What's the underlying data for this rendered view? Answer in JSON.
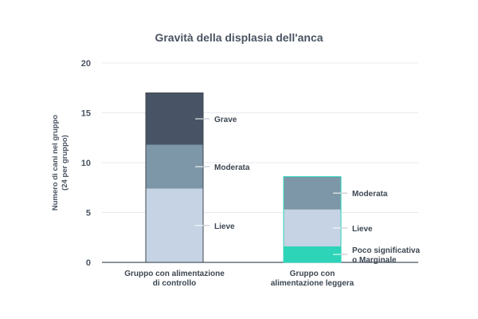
{
  "chart_data": {
    "type": "bar",
    "stacked": true,
    "title": "Gravità della displasia dell'anca",
    "ylabel_lines": [
      "Numero di cani nel gruppo",
      "(24 per gruppo)"
    ],
    "xlabel": "",
    "ylim": [
      0,
      20
    ],
    "yticks": [
      0,
      5,
      10,
      15,
      20
    ],
    "grid": true,
    "categories": [
      [
        "Gruppo con alimentazione",
        "di controllo"
      ],
      [
        "Gruppo con",
        "alimentazione leggera"
      ]
    ],
    "bars": [
      {
        "segments": [
          {
            "label": [
              "Lieve"
            ],
            "value": 7.4,
            "color": "#c5d3e4"
          },
          {
            "label": [
              "Moderata"
            ],
            "value": 4.4,
            "color": "#7d97a8"
          },
          {
            "label": [
              "Grave"
            ],
            "value": 5.2,
            "color": "#485465"
          }
        ],
        "border": "#3d4752"
      },
      {
        "segments": [
          {
            "label": [
              "Poco significativa",
              "o Marginale"
            ],
            "value": 1.6,
            "color": "#2dd4b8"
          },
          {
            "label": [
              "Lieve"
            ],
            "value": 3.7,
            "color": "#c5d3e4"
          },
          {
            "label": [
              "Moderata"
            ],
            "value": 3.3,
            "color": "#7d97a8"
          }
        ],
        "border": "#2dd4b8"
      }
    ],
    "colors": {
      "grid": "#e6e9ee",
      "axis": "#4a5462",
      "text": "#3d4752"
    }
  }
}
